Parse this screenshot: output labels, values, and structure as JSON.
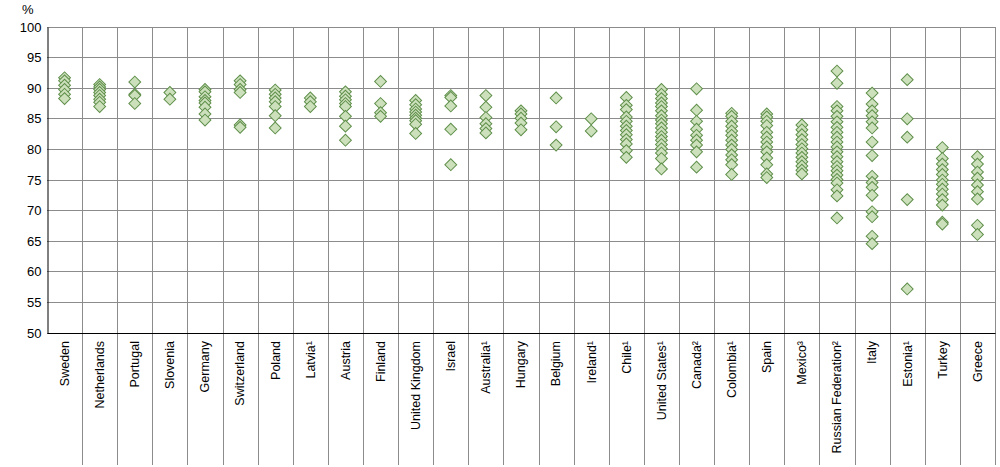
{
  "chart_data": {
    "type": "strip",
    "ylabel": "%",
    "categories": [
      "Sweden",
      "Netherlands",
      "Portugal",
      "Slovenia",
      "Germany",
      "Switzerland",
      "Poland",
      "Latvia¹",
      "Austria",
      "Finland",
      "United Kingdom",
      "Israel",
      "Australia¹",
      "Hungary",
      "Belgium",
      "Ireland¹",
      "Chile¹",
      "United States¹",
      "Canada²",
      "Colombia¹",
      "Spain",
      "Mexico³",
      "Russian Federation²",
      "Italy",
      "Estonia¹",
      "Turkey",
      "Greece"
    ],
    "values": [
      [
        91.7,
        91.2,
        90.5,
        89.8,
        89.0,
        88.3
      ],
      [
        90.6,
        90.2,
        89.8,
        89.3,
        88.8,
        88.2,
        87.7,
        87.0
      ],
      [
        91.0,
        89.0,
        88.8,
        87.5
      ],
      [
        89.3,
        88.2
      ],
      [
        89.8,
        89.4,
        88.6,
        88.0,
        87.6,
        86.9,
        85.8,
        84.8
      ],
      [
        91.2,
        90.6,
        89.8,
        89.3,
        84.0,
        83.6
      ],
      [
        89.7,
        89.0,
        88.4,
        87.8,
        87.0,
        85.5,
        83.5
      ],
      [
        88.4,
        87.8,
        87.0
      ],
      [
        89.4,
        88.7,
        88.1,
        87.5,
        87.0,
        85.4,
        83.8,
        81.5
      ],
      [
        91.1,
        87.5,
        86.0,
        85.4
      ],
      [
        88.0,
        87.3,
        86.6,
        86.1,
        85.6,
        85.1,
        84.7,
        84.1,
        82.6
      ],
      [
        88.8,
        88.5,
        87.1,
        83.3,
        77.5
      ],
      [
        88.8,
        86.9,
        85.2,
        84.2,
        83.4,
        82.7
      ],
      [
        86.3,
        85.8,
        85.1,
        84.3,
        83.2
      ],
      [
        88.4,
        83.7,
        80.7
      ],
      [
        85.0,
        83.0
      ],
      [
        88.5,
        87.2,
        86.5,
        85.3,
        84.6,
        83.8,
        83.1,
        82.4,
        81.6,
        80.9,
        79.8,
        78.7
      ],
      [
        89.8,
        89.0,
        88.3,
        87.6,
        87.0,
        86.3,
        85.5,
        84.8,
        84.2,
        83.5,
        82.8,
        82.1,
        81.5,
        80.8,
        80.1,
        79.4,
        78.5,
        76.8
      ],
      [
        89.9,
        86.4,
        84.6,
        83.3,
        82.3,
        81.5,
        80.7,
        79.6,
        77.1
      ],
      [
        85.9,
        85.4,
        84.6,
        83.8,
        83.0,
        82.3,
        81.5,
        80.7,
        80.0,
        79.1,
        78.3,
        77.5,
        75.9
      ],
      [
        85.8,
        85.3,
        84.6,
        83.9,
        82.8,
        82.0,
        81.2,
        80.4,
        79.6,
        78.6,
        77.5,
        76.0,
        75.4
      ],
      [
        84.0,
        83.2,
        82.4,
        81.6,
        80.8,
        80.1,
        79.4,
        78.7,
        78.0,
        77.3,
        76.6,
        76.0
      ],
      [
        92.8,
        90.8,
        87.0,
        86.3,
        85.4,
        84.5,
        83.6,
        82.8,
        82.0,
        81.2,
        80.4,
        79.6,
        78.8,
        78.0,
        77.2,
        76.5,
        75.8,
        75.1,
        74.5,
        73.4,
        72.4,
        68.8
      ],
      [
        89.2,
        87.4,
        86.3,
        85.5,
        84.5,
        83.5,
        81.2,
        79.0,
        75.6,
        74.6,
        73.8,
        72.5,
        69.8,
        69.0,
        65.8,
        64.6
      ],
      [
        91.4,
        85.0,
        82.0,
        71.8,
        57.2
      ],
      [
        80.3,
        78.5,
        77.6,
        76.7,
        75.9,
        75.0,
        74.3,
        73.5,
        72.7,
        71.8,
        70.9,
        68.1,
        67.8
      ],
      [
        78.8,
        77.6,
        76.3,
        75.3,
        74.2,
        73.1,
        71.9,
        67.6,
        66.1
      ]
    ],
    "color": "#cce0bc",
    "marker": "diamond",
    "grid": true,
    "ylim": [
      50,
      100
    ],
    "yticks": [
      50,
      55,
      60,
      65,
      70,
      75,
      80,
      85,
      90,
      95,
      100
    ]
  }
}
